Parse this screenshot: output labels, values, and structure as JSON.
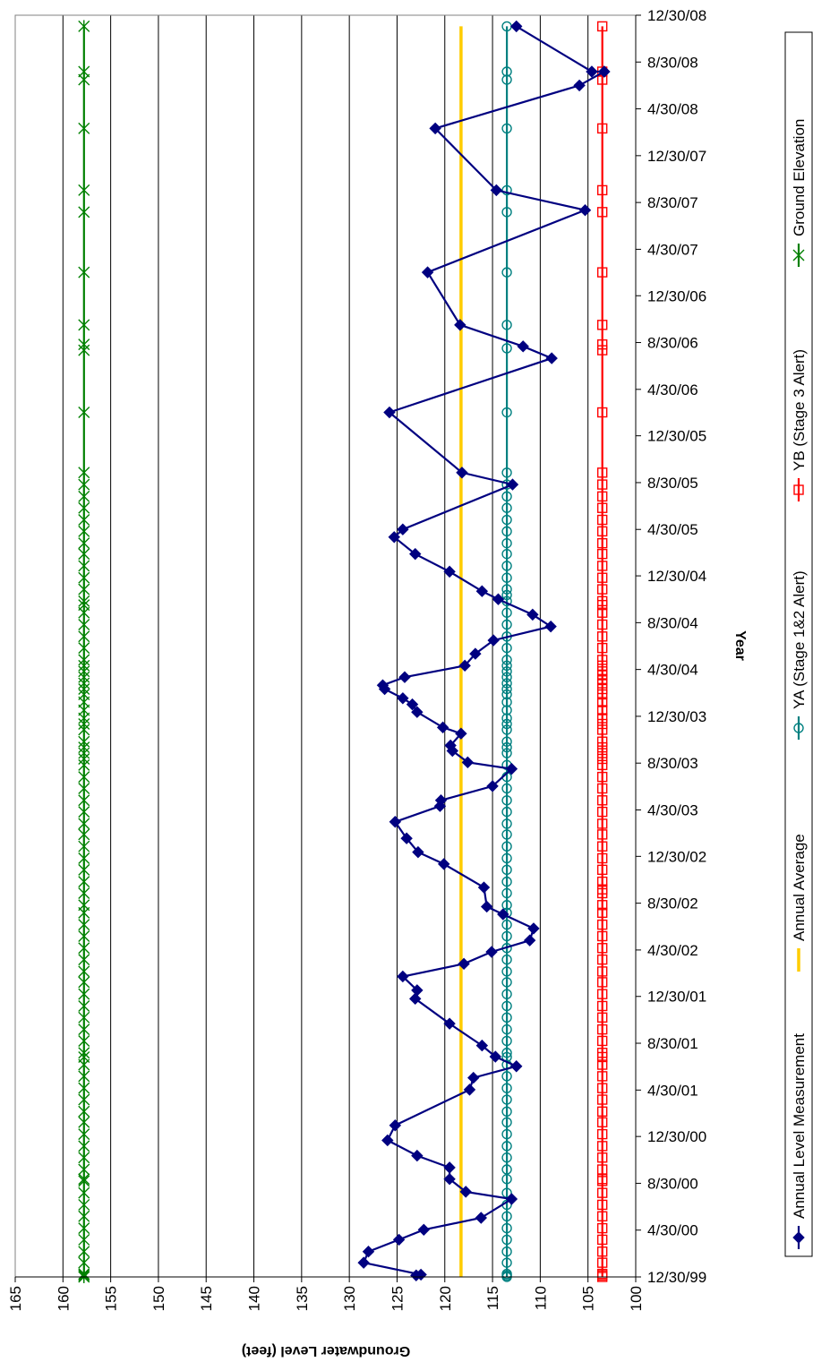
{
  "chart_data": {
    "type": "line",
    "xlabel": "Year",
    "ylabel": "Groundwater Level (feet)",
    "ylim": [
      100,
      165
    ],
    "y_ticks": [
      100,
      105,
      110,
      115,
      120,
      125,
      130,
      135,
      140,
      145,
      150,
      155,
      160,
      165
    ],
    "xlim": [
      "1999-12-30",
      "2008-12-30"
    ],
    "x_ticks": [
      {
        "date": "1999-12-30",
        "label": "12/30/99"
      },
      {
        "date": "2000-04-30",
        "label": "4/30/00"
      },
      {
        "date": "2000-08-30",
        "label": "8/30/00"
      },
      {
        "date": "2000-12-30",
        "label": "12/30/00"
      },
      {
        "date": "2001-04-30",
        "label": "4/30/01"
      },
      {
        "date": "2001-08-30",
        "label": "8/30/01"
      },
      {
        "date": "2001-12-30",
        "label": "12/30/01"
      },
      {
        "date": "2002-04-30",
        "label": "4/30/02"
      },
      {
        "date": "2002-08-30",
        "label": "8/30/02"
      },
      {
        "date": "2002-12-30",
        "label": "12/30/02"
      },
      {
        "date": "2003-04-30",
        "label": "4/30/03"
      },
      {
        "date": "2003-08-30",
        "label": "8/30/03"
      },
      {
        "date": "2003-12-30",
        "label": "12/30/03"
      },
      {
        "date": "2004-04-30",
        "label": "4/30/04"
      },
      {
        "date": "2004-08-30",
        "label": "8/30/04"
      },
      {
        "date": "2004-12-30",
        "label": "12/30/04"
      },
      {
        "date": "2005-04-30",
        "label": "4/30/05"
      },
      {
        "date": "2005-08-30",
        "label": "8/30/05"
      },
      {
        "date": "2005-12-30",
        "label": "12/30/05"
      },
      {
        "date": "2006-04-30",
        "label": "4/30/06"
      },
      {
        "date": "2006-08-30",
        "label": "8/30/06"
      },
      {
        "date": "2006-12-30",
        "label": "12/30/06"
      },
      {
        "date": "2007-04-30",
        "label": "4/30/07"
      },
      {
        "date": "2007-08-30",
        "label": "8/30/07"
      },
      {
        "date": "2007-12-30",
        "label": "12/30/07"
      },
      {
        "date": "2008-04-30",
        "label": "4/30/08"
      },
      {
        "date": "2008-08-30",
        "label": "8/30/08"
      },
      {
        "date": "2008-12-30",
        "label": "12/30/08"
      }
    ],
    "grid": {
      "horizontal": false,
      "vertical": true
    },
    "orientation": "rotated 90 degrees clockwise (date axis vertical, level axis horizontal reversed)",
    "legend_position": "right",
    "series": [
      {
        "name": "Annual  Level Measurement",
        "color": "#000080",
        "marker": "diamond",
        "points": [
          [
            "2000-01-03",
            123
          ],
          [
            "2000-01-05",
            122.5
          ],
          [
            "2000-02-05",
            128.5
          ],
          [
            "2000-03-05",
            128
          ],
          [
            "2000-04-05",
            124.8
          ],
          [
            "2000-05-01",
            122.2
          ],
          [
            "2000-06-01",
            116.2
          ],
          [
            "2000-07-20",
            113
          ],
          [
            "2000-08-08",
            117.8
          ],
          [
            "2000-09-10",
            119.5
          ],
          [
            "2000-10-10",
            119.5
          ],
          [
            "2000-11-10",
            122.9
          ],
          [
            "2000-12-20",
            126
          ],
          [
            "2001-01-28",
            125.2
          ],
          [
            "2001-05-01",
            117.4
          ],
          [
            "2001-06-01",
            117
          ],
          [
            "2001-07-01",
            112.5
          ],
          [
            "2001-07-26",
            114.7
          ],
          [
            "2001-08-24",
            116.1
          ],
          [
            "2001-10-20",
            119.5
          ],
          [
            "2001-12-24",
            123.1
          ],
          [
            "2002-01-15",
            122.9
          ],
          [
            "2002-02-20",
            124.4
          ],
          [
            "2002-03-25",
            118
          ],
          [
            "2002-04-25",
            115.1
          ],
          [
            "2002-05-25",
            111.1
          ],
          [
            "2002-06-25",
            110.7
          ],
          [
            "2002-08-01",
            113.9
          ],
          [
            "2002-08-21",
            115.6
          ],
          [
            "2002-10-10",
            115.9
          ],
          [
            "2002-12-10",
            120.1
          ],
          [
            "2003-01-10",
            122.8
          ],
          [
            "2003-02-15",
            124
          ],
          [
            "2003-03-30",
            125.2
          ],
          [
            "2003-05-10",
            120.5
          ],
          [
            "2003-05-25",
            120.4
          ],
          [
            "2003-07-01",
            115
          ],
          [
            "2003-08-15",
            113
          ],
          [
            "2003-09-01",
            117.6
          ],
          [
            "2003-10-01",
            119.2
          ],
          [
            "2003-10-15",
            119.4
          ],
          [
            "2003-11-15",
            118.3
          ],
          [
            "2003-12-01",
            120.2
          ],
          [
            "2004-01-10",
            122.9
          ],
          [
            "2004-01-30",
            123.4
          ],
          [
            "2004-02-15",
            124.4
          ],
          [
            "2004-03-10",
            126.3
          ],
          [
            "2004-03-20",
            126.5
          ],
          [
            "2004-04-10",
            124.2
          ],
          [
            "2004-05-10",
            117.9
          ],
          [
            "2004-06-10",
            116.8
          ],
          [
            "2004-07-15",
            114.9
          ],
          [
            "2004-08-20",
            108.9
          ],
          [
            "2004-09-20",
            110.8
          ],
          [
            "2004-10-30",
            114.4
          ],
          [
            "2004-11-20",
            116.1
          ],
          [
            "2005-01-10",
            119.5
          ],
          [
            "2005-02-25",
            123.1
          ],
          [
            "2005-04-10",
            125.3
          ],
          [
            "2005-04-30",
            124.4
          ],
          [
            "2005-08-25",
            112.9
          ],
          [
            "2005-09-25",
            118.2
          ],
          [
            "2006-03-01",
            125.8
          ],
          [
            "2006-07-20",
            108.8
          ],
          [
            "2006-08-20",
            111.8
          ],
          [
            "2006-10-15",
            118.4
          ],
          [
            "2007-03-01",
            121.8
          ],
          [
            "2007-08-10",
            105.3
          ],
          [
            "2007-10-01",
            114.6
          ],
          [
            "2008-03-10",
            121
          ],
          [
            "2008-06-30",
            105.9
          ],
          [
            "2008-08-05",
            103.3
          ],
          [
            "2008-08-05",
            103.3
          ],
          [
            "2008-08-05",
            104.6
          ],
          [
            "2008-12-01",
            112.5
          ]
        ]
      },
      {
        "name": "Annual Average",
        "color": "#FFCC00",
        "marker": "none",
        "points": [
          [
            "1999-12-30",
            118.3
          ],
          [
            "2008-12-01",
            118.3
          ]
        ]
      },
      {
        "name": "YA (Stage 1&2 Alert)",
        "color": "#008080",
        "marker": "circle",
        "value": 113.5,
        "dates": [
          "1999-12-30",
          "2000-01-03",
          "2000-01-07",
          "2000-02-05",
          "2000-03-05",
          "2000-04-05",
          "2000-05-05",
          "2000-06-05",
          "2000-07-05",
          "2000-08-05",
          "2000-09-10",
          "2000-10-05",
          "2000-11-05",
          "2000-12-05",
          "2001-01-05",
          "2001-02-05",
          "2001-03-05",
          "2001-04-05",
          "2001-05-05",
          "2001-06-05",
          "2001-07-05",
          "2001-07-25",
          "2001-08-05",
          "2001-09-05",
          "2001-10-05",
          "2001-11-05",
          "2001-12-05",
          "2002-01-05",
          "2002-02-05",
          "2002-03-05",
          "2002-04-05",
          "2002-05-05",
          "2002-06-05",
          "2002-07-05",
          "2002-08-05",
          "2002-08-25",
          "2002-09-25",
          "2002-10-25",
          "2002-11-25",
          "2002-12-25",
          "2003-01-25",
          "2003-02-25",
          "2003-03-25",
          "2003-04-25",
          "2003-05-25",
          "2003-06-25",
          "2003-07-25",
          "2003-08-25",
          "2003-09-25",
          "2003-10-10",
          "2003-10-25",
          "2003-11-25",
          "2003-12-10",
          "2003-12-25",
          "2004-01-15",
          "2004-02-05",
          "2004-02-25",
          "2004-03-10",
          "2004-03-25",
          "2004-04-10",
          "2004-04-25",
          "2004-05-10",
          "2004-05-25",
          "2004-06-25",
          "2004-07-25",
          "2004-08-25",
          "2004-09-25",
          "2004-10-25",
          "2004-11-10",
          "2004-11-25",
          "2004-12-25",
          "2005-01-25",
          "2005-02-25",
          "2005-03-25",
          "2005-04-25",
          "2005-05-25",
          "2005-06-25",
          "2005-07-25",
          "2005-08-25",
          "2005-09-25",
          "2006-03-01",
          "2006-08-15",
          "2006-10-15",
          "2007-03-01",
          "2007-08-05",
          "2007-10-01",
          "2008-03-10",
          "2008-07-15",
          "2008-08-05",
          "2008-12-01"
        ]
      },
      {
        "name": "YB (Stage 3 Alert)",
        "color": "#FF0000",
        "marker": "square",
        "value": 103.5,
        "dates": [
          "1999-12-30",
          "2000-01-03",
          "2000-01-07",
          "2000-02-05",
          "2000-03-05",
          "2000-04-05",
          "2000-05-05",
          "2000-06-05",
          "2000-07-05",
          "2000-08-05",
          "2000-09-05",
          "2000-09-10",
          "2000-10-05",
          "2000-11-05",
          "2000-12-05",
          "2001-01-05",
          "2001-02-05",
          "2001-03-05",
          "2001-04-05",
          "2001-05-05",
          "2001-06-05",
          "2001-07-05",
          "2001-07-25",
          "2001-08-05",
          "2001-09-05",
          "2001-10-05",
          "2001-11-05",
          "2001-12-05",
          "2002-01-05",
          "2002-02-05",
          "2002-03-05",
          "2002-04-05",
          "2002-05-05",
          "2002-06-05",
          "2002-07-05",
          "2002-08-05",
          "2002-08-25",
          "2002-09-25",
          "2002-10-05",
          "2002-10-25",
          "2002-11-25",
          "2002-12-25",
          "2003-01-25",
          "2003-02-25",
          "2003-03-25",
          "2003-04-25",
          "2003-05-25",
          "2003-06-25",
          "2003-07-25",
          "2003-08-25",
          "2003-09-10",
          "2003-09-25",
          "2003-10-10",
          "2003-10-25",
          "2003-11-25",
          "2003-12-10",
          "2003-12-25",
          "2004-01-15",
          "2004-02-05",
          "2004-02-25",
          "2004-03-10",
          "2004-03-25",
          "2004-04-05",
          "2004-04-15",
          "2004-04-25",
          "2004-05-10",
          "2004-05-25",
          "2004-06-25",
          "2004-07-25",
          "2004-08-25",
          "2004-09-25",
          "2004-10-15",
          "2004-10-25",
          "2004-11-25",
          "2004-12-25",
          "2005-01-25",
          "2005-02-25",
          "2005-03-25",
          "2005-04-25",
          "2005-05-25",
          "2005-06-25",
          "2005-07-25",
          "2005-08-25",
          "2005-09-25",
          "2006-03-01",
          "2006-08-10",
          "2006-08-25",
          "2006-10-15",
          "2007-03-01",
          "2007-08-05",
          "2007-10-01",
          "2008-03-10",
          "2008-07-15",
          "2008-08-05",
          "2008-12-01"
        ]
      },
      {
        "name": "Ground Elevation",
        "color": "#008000",
        "marker": "star",
        "value": 157.8,
        "dates": [
          "1999-12-30",
          "2000-01-03",
          "2000-01-07",
          "2000-02-05",
          "2000-03-05",
          "2000-04-05",
          "2000-05-05",
          "2000-06-05",
          "2000-07-05",
          "2000-08-05",
          "2000-09-05",
          "2000-09-10",
          "2000-10-05",
          "2000-11-05",
          "2000-12-05",
          "2001-01-05",
          "2001-02-05",
          "2001-03-05",
          "2001-04-05",
          "2001-05-05",
          "2001-06-05",
          "2001-07-05",
          "2001-07-25",
          "2001-08-05",
          "2001-09-05",
          "2001-10-05",
          "2001-11-05",
          "2001-12-05",
          "2002-01-05",
          "2002-02-05",
          "2002-03-05",
          "2002-04-05",
          "2002-05-05",
          "2002-06-05",
          "2002-07-05",
          "2002-08-05",
          "2002-08-25",
          "2002-09-25",
          "2002-10-25",
          "2002-11-25",
          "2002-12-25",
          "2003-01-25",
          "2003-02-25",
          "2003-03-25",
          "2003-04-25",
          "2003-05-25",
          "2003-06-25",
          "2003-07-25",
          "2003-08-25",
          "2003-09-10",
          "2003-09-25",
          "2003-10-10",
          "2003-10-25",
          "2003-11-25",
          "2003-12-10",
          "2003-12-25",
          "2004-01-15",
          "2004-02-05",
          "2004-02-25",
          "2004-03-10",
          "2004-03-25",
          "2004-04-10",
          "2004-04-25",
          "2004-05-10",
          "2004-05-25",
          "2004-06-25",
          "2004-07-25",
          "2004-08-25",
          "2004-09-25",
          "2004-10-15",
          "2004-10-25",
          "2004-11-25",
          "2004-12-25",
          "2005-01-25",
          "2005-02-25",
          "2005-03-25",
          "2005-04-25",
          "2005-05-25",
          "2005-06-25",
          "2005-07-25",
          "2005-08-25",
          "2005-09-25",
          "2006-03-01",
          "2006-08-10",
          "2006-08-25",
          "2006-10-15",
          "2007-03-01",
          "2007-08-05",
          "2007-10-01",
          "2008-03-10",
          "2008-07-15",
          "2008-08-05",
          "2008-12-01"
        ]
      }
    ]
  }
}
